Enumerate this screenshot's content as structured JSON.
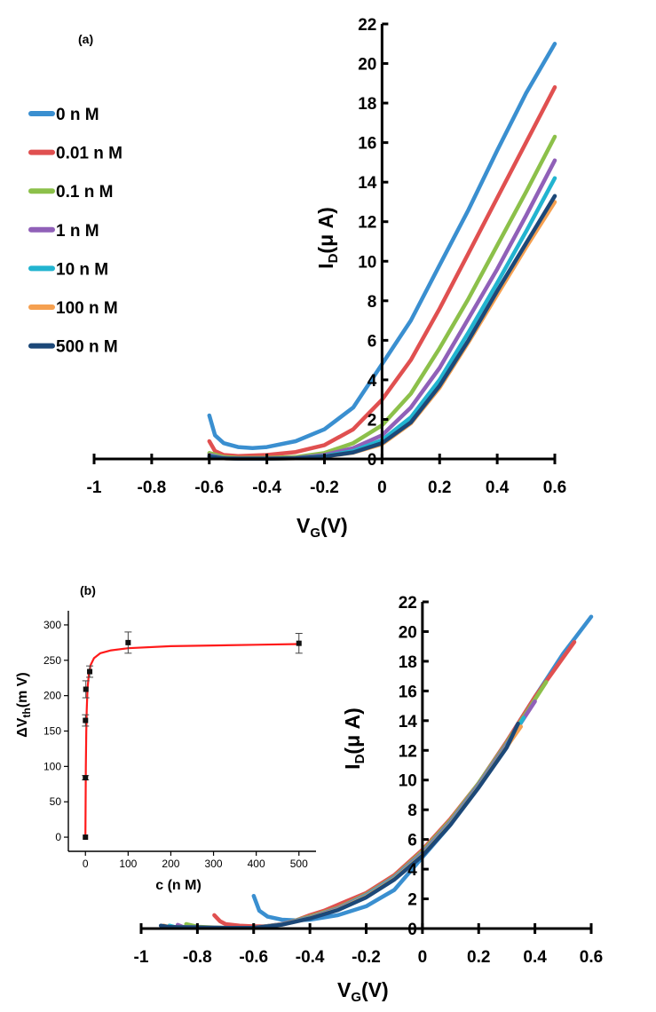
{
  "chart_data": [
    {
      "panel": "(a)",
      "type": "line",
      "xlabel": "V",
      "xlabel_sub": "G",
      "xlabel_unit": "(V)",
      "ylabel": "I",
      "ylabel_sub": "D",
      "ylabel_unit": "(μ A)",
      "xlim": [
        -1,
        0.6
      ],
      "ylim": [
        0,
        22
      ],
      "xticks": [
        "-1",
        "-0.8",
        "-0.6",
        "-0.4",
        "-0.2",
        "0",
        "0.2",
        "0.4",
        "0.6"
      ],
      "yticks": [
        "0",
        "2",
        "4",
        "6",
        "8",
        "10",
        "12",
        "14",
        "16",
        "18",
        "20",
        "22"
      ],
      "legend_position": "left",
      "series": [
        {
          "name": "0 n M",
          "color": "#3a8fd0",
          "x": [
            -0.6,
            -0.58,
            -0.55,
            -0.5,
            -0.45,
            -0.4,
            -0.3,
            -0.2,
            -0.1,
            0,
            0.1,
            0.2,
            0.3,
            0.4,
            0.5,
            0.6
          ],
          "y": [
            2.2,
            1.2,
            0.8,
            0.6,
            0.55,
            0.6,
            0.9,
            1.5,
            2.6,
            4.8,
            7.0,
            9.8,
            12.6,
            15.6,
            18.5,
            21.0
          ]
        },
        {
          "name": "0.01 n M",
          "color": "#e05050",
          "x": [
            -0.6,
            -0.58,
            -0.55,
            -0.5,
            -0.4,
            -0.3,
            -0.2,
            -0.1,
            0,
            0.1,
            0.2,
            0.3,
            0.4,
            0.5,
            0.6
          ],
          "y": [
            0.9,
            0.4,
            0.2,
            0.15,
            0.2,
            0.35,
            0.7,
            1.5,
            3.0,
            5.0,
            7.6,
            10.4,
            13.2,
            16.0,
            18.8
          ]
        },
        {
          "name": "0.1 n M",
          "color": "#8cc04a",
          "x": [
            -0.6,
            -0.55,
            -0.5,
            -0.4,
            -0.3,
            -0.2,
            -0.1,
            0,
            0.1,
            0.2,
            0.3,
            0.4,
            0.5,
            0.6
          ],
          "y": [
            0.3,
            0.1,
            0.05,
            0.05,
            0.1,
            0.3,
            0.8,
            1.7,
            3.3,
            5.6,
            8.1,
            10.8,
            13.5,
            16.3
          ]
        },
        {
          "name": "1 n M",
          "color": "#9060b8",
          "x": [
            -0.6,
            -0.55,
            -0.5,
            -0.4,
            -0.3,
            -0.2,
            -0.1,
            0,
            0.1,
            0.2,
            0.3,
            0.4,
            0.5,
            0.6
          ],
          "y": [
            0.2,
            0.05,
            0.02,
            0.02,
            0.05,
            0.2,
            0.55,
            1.2,
            2.6,
            4.6,
            7.1,
            9.6,
            12.3,
            15.1
          ]
        },
        {
          "name": "10 n M",
          "color": "#22b4d0",
          "x": [
            -0.6,
            -0.55,
            -0.5,
            -0.4,
            -0.3,
            -0.2,
            -0.1,
            0,
            0.1,
            0.2,
            0.3,
            0.4,
            0.5,
            0.6
          ],
          "y": [
            0.15,
            0.04,
            0.02,
            0.02,
            0.04,
            0.15,
            0.4,
            0.95,
            2.1,
            4.0,
            6.4,
            8.9,
            11.5,
            14.2
          ]
        },
        {
          "name": "100 n M",
          "color": "#f5a050",
          "x": [
            -0.6,
            -0.55,
            -0.5,
            -0.4,
            -0.3,
            -0.2,
            -0.1,
            0,
            0.1,
            0.2,
            0.3,
            0.4,
            0.5,
            0.6
          ],
          "y": [
            0.12,
            0.03,
            0.02,
            0.02,
            0.03,
            0.12,
            0.32,
            0.75,
            1.8,
            3.6,
            5.9,
            8.3,
            10.7,
            13.0
          ]
        },
        {
          "name": "500 n M",
          "color": "#1c4878",
          "x": [
            -0.6,
            -0.55,
            -0.5,
            -0.4,
            -0.3,
            -0.2,
            -0.1,
            0,
            0.1,
            0.2,
            0.3,
            0.4,
            0.5,
            0.6
          ],
          "y": [
            0.12,
            0.03,
            0.02,
            0.02,
            0.03,
            0.12,
            0.33,
            0.8,
            1.85,
            3.7,
            6.0,
            8.5,
            10.9,
            13.3
          ]
        }
      ]
    },
    {
      "panel": "(b)",
      "type": "line",
      "xlabel": "V",
      "xlabel_sub": "G",
      "xlabel_unit": "(V)",
      "ylabel": "I",
      "ylabel_sub": "D",
      "ylabel_unit": "(μ A)",
      "xlim": [
        -1,
        0.6
      ],
      "ylim": [
        0,
        22
      ],
      "xticks": [
        "-1",
        "-0.8",
        "-0.6",
        "-0.4",
        "-0.2",
        "0",
        "0.2",
        "0.4",
        "0.6"
      ],
      "yticks": [
        "0",
        "2",
        "4",
        "6",
        "8",
        "10",
        "12",
        "14",
        "16",
        "18",
        "20",
        "22"
      ],
      "series": [
        {
          "name": "0 n M",
          "color": "#3a8fd0",
          "x": [
            -0.6,
            -0.58,
            -0.55,
            -0.5,
            -0.45,
            -0.4,
            -0.3,
            -0.2,
            -0.1,
            0,
            0.1,
            0.2,
            0.3,
            0.4,
            0.5,
            0.6
          ],
          "y": [
            2.2,
            1.2,
            0.8,
            0.6,
            0.55,
            0.6,
            0.9,
            1.5,
            2.6,
            4.8,
            7.0,
            9.8,
            12.6,
            15.6,
            18.5,
            21.0
          ]
        },
        {
          "name": "0.01 n M",
          "color": "#e05050",
          "x": [
            -0.74,
            -0.72,
            -0.7,
            -0.65,
            -0.6,
            -0.55,
            -0.5,
            -0.45,
            -0.4,
            -0.35,
            -0.3,
            -0.2,
            -0.1,
            0,
            0.1,
            0.2,
            0.3,
            0.4,
            0.54
          ],
          "y": [
            0.9,
            0.5,
            0.3,
            0.2,
            0.15,
            0.15,
            0.3,
            0.55,
            0.9,
            1.2,
            1.6,
            2.4,
            3.6,
            5.3,
            7.4,
            9.8,
            12.6,
            15.6,
            19.3
          ]
        },
        {
          "name": "0.1 n M",
          "color": "#8cc04a",
          "x": [
            -0.84,
            -0.8,
            -0.7,
            -0.6,
            -0.5,
            -0.4,
            -0.3,
            -0.2,
            -0.1,
            0,
            0.1,
            0.2,
            0.3,
            0.44
          ],
          "y": [
            0.3,
            0.12,
            0.05,
            0.05,
            0.3,
            0.8,
            1.4,
            2.3,
            3.5,
            5.2,
            7.3,
            9.8,
            12.5,
            16.6
          ]
        },
        {
          "name": "1 n M",
          "color": "#9060b8",
          "x": [
            -0.87,
            -0.85,
            -0.7,
            -0.6,
            -0.5,
            -0.4,
            -0.3,
            -0.2,
            -0.1,
            0,
            0.1,
            0.2,
            0.3,
            0.4
          ],
          "y": [
            0.25,
            0.1,
            0.05,
            0.05,
            0.3,
            0.75,
            1.35,
            2.25,
            3.45,
            5.1,
            7.2,
            9.7,
            12.4,
            15.3
          ]
        },
        {
          "name": "10 n M",
          "color": "#22b4d0",
          "x": [
            -0.9,
            -0.88,
            -0.7,
            -0.6,
            -0.5,
            -0.4,
            -0.3,
            -0.2,
            -0.1,
            0,
            0.1,
            0.2,
            0.3,
            0.36
          ],
          "y": [
            0.2,
            0.1,
            0.05,
            0.05,
            0.28,
            0.72,
            1.3,
            2.2,
            3.4,
            5.0,
            7.1,
            9.6,
            12.3,
            14.2
          ]
        },
        {
          "name": "100 n M",
          "color": "#f5a050",
          "x": [
            -0.92,
            -0.9,
            -0.7,
            -0.6,
            -0.5,
            -0.4,
            -0.3,
            -0.2,
            -0.1,
            0,
            0.1,
            0.2,
            0.3,
            0.35
          ],
          "y": [
            0.2,
            0.1,
            0.05,
            0.05,
            0.27,
            0.7,
            1.28,
            2.15,
            3.35,
            4.95,
            7.05,
            9.55,
            12.25,
            13.6
          ]
        },
        {
          "name": "500 n M",
          "color": "#1c4878",
          "x": [
            -0.93,
            -0.9,
            -0.7,
            -0.6,
            -0.5,
            -0.4,
            -0.3,
            -0.2,
            -0.1,
            0,
            0.1,
            0.2,
            0.3,
            0.34
          ],
          "y": [
            0.2,
            0.1,
            0.05,
            0.05,
            0.26,
            0.68,
            1.25,
            2.1,
            3.3,
            4.9,
            7.0,
            9.5,
            12.2,
            13.8
          ]
        }
      ]
    },
    {
      "panel": "(b) inset",
      "type": "scatter",
      "xlabel": "c (n M)",
      "ylabel": "ΔV",
      "ylabel_sub": "th",
      "ylabel_unit": "(m V)",
      "xlim": [
        -40,
        540
      ],
      "ylim": [
        -20,
        320
      ],
      "xticks": [
        "0",
        "100",
        "200",
        "300",
        "400",
        "500"
      ],
      "yticks": [
        "0",
        "50",
        "100",
        "150",
        "200",
        "250",
        "300"
      ],
      "points": [
        {
          "x": 0,
          "y": 0,
          "err": 0
        },
        {
          "x": 0.01,
          "y": 84,
          "err": 3
        },
        {
          "x": 0.1,
          "y": 165,
          "err": 8
        },
        {
          "x": 1,
          "y": 209,
          "err": 12
        },
        {
          "x": 10,
          "y": 234,
          "err": 8
        },
        {
          "x": 100,
          "y": 275,
          "err": 15
        },
        {
          "x": 500,
          "y": 274,
          "err": 14
        }
      ],
      "fit": {
        "color": "#ff1a1a",
        "x": [
          0,
          0.3,
          1,
          2,
          3,
          5,
          8,
          12,
          20,
          35,
          60,
          100,
          200,
          300,
          400,
          500
        ],
        "y": [
          0,
          40,
          100,
          150,
          180,
          210,
          230,
          243,
          253,
          260,
          264,
          267,
          270,
          271,
          272,
          273
        ]
      }
    }
  ]
}
